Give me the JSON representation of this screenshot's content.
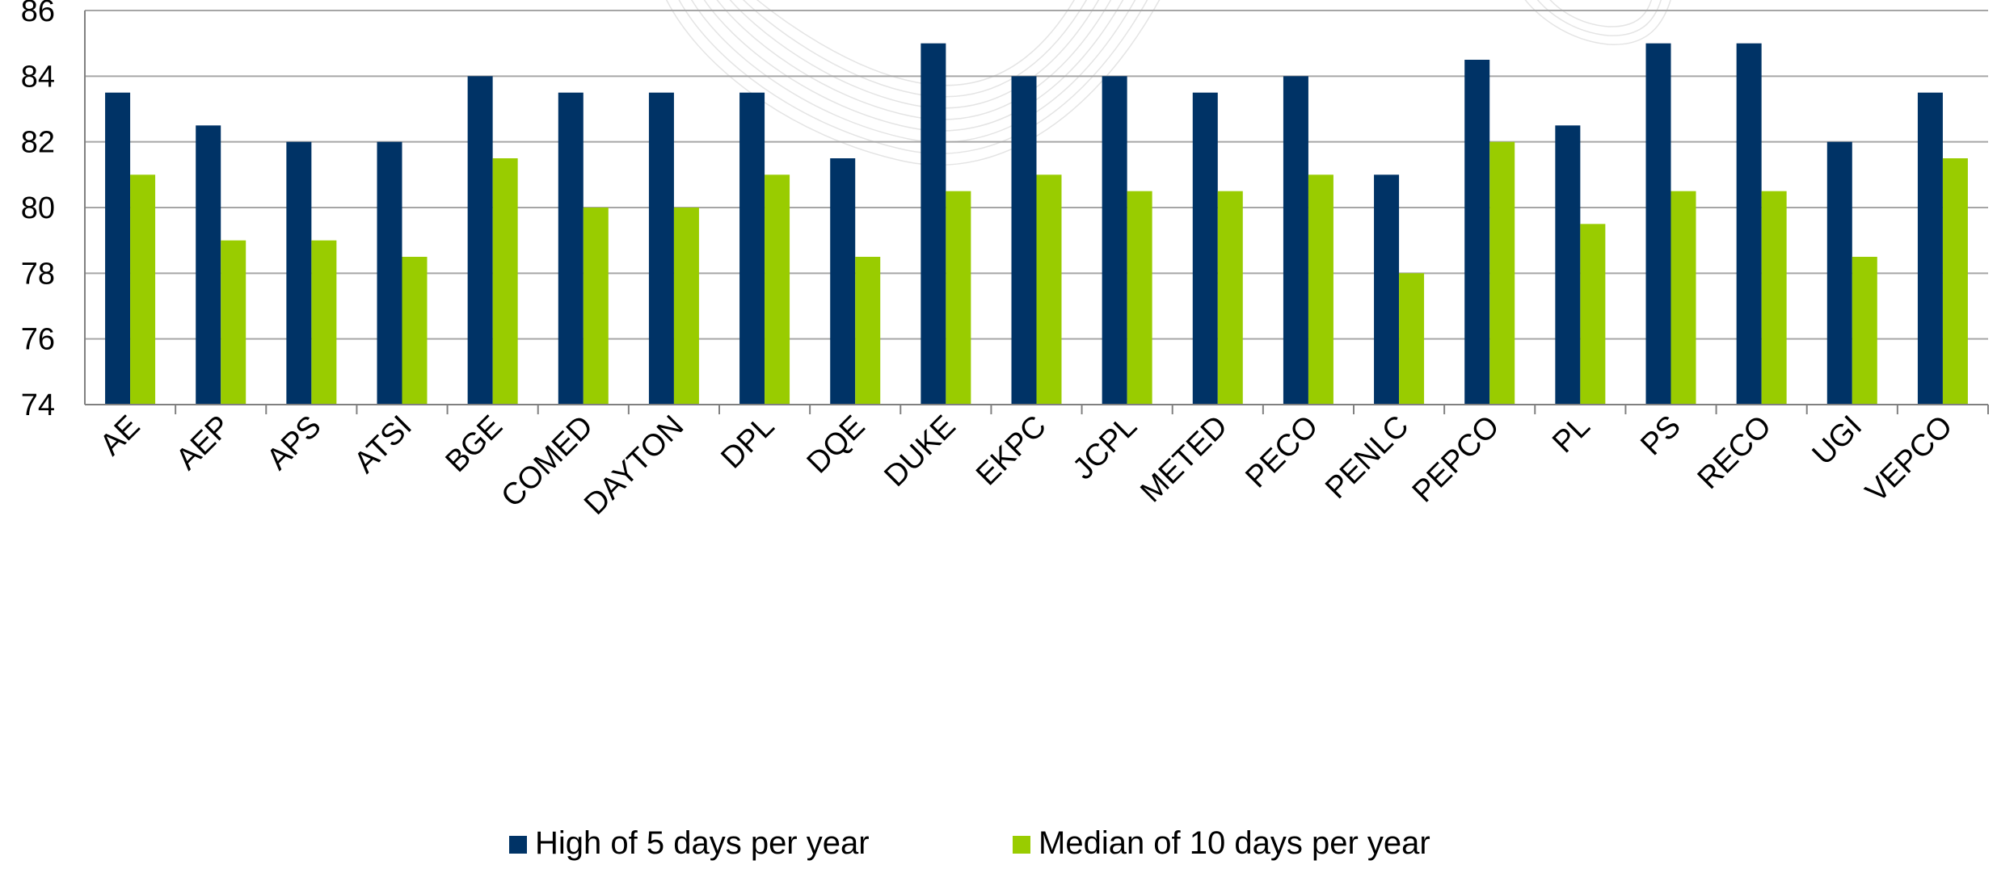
{
  "chart_data": {
    "type": "bar",
    "title": "",
    "xlabel": "",
    "ylabel": "",
    "ylim": [
      74,
      86
    ],
    "yticks": [
      74,
      76,
      78,
      80,
      82,
      84,
      86
    ],
    "grid": true,
    "legend_position": "bottom",
    "categories": [
      "AE",
      "AEP",
      "APS",
      "ATSI",
      "BGE",
      "COMED",
      "DAYTON",
      "DPL",
      "DQE",
      "DUKE",
      "EKPC",
      "JCPL",
      "METED",
      "PECO",
      "PENLC",
      "PEPCO",
      "PL",
      "PS",
      "RECO",
      "UGI",
      "VEPCO"
    ],
    "series": [
      {
        "name": "High of 5 days per year",
        "color": "#003366",
        "values": [
          83.5,
          82.5,
          82,
          82,
          84,
          83.5,
          83.5,
          83.5,
          81.5,
          85,
          84,
          84,
          83.5,
          84,
          81,
          84.5,
          82.5,
          85,
          85,
          82,
          83.5
        ]
      },
      {
        "name": "Median of 10 days per year",
        "color": "#99cc00",
        "values": [
          81,
          79,
          79,
          78.5,
          81.5,
          80,
          80,
          81,
          78.5,
          80.5,
          81,
          80.5,
          80.5,
          81,
          78,
          82,
          79.5,
          80.5,
          80.5,
          78.5,
          81.5
        ]
      }
    ]
  },
  "colors": {
    "gridline": "#a6a6a6",
    "axis": "#808080",
    "watermark": "#e4e4e4"
  }
}
